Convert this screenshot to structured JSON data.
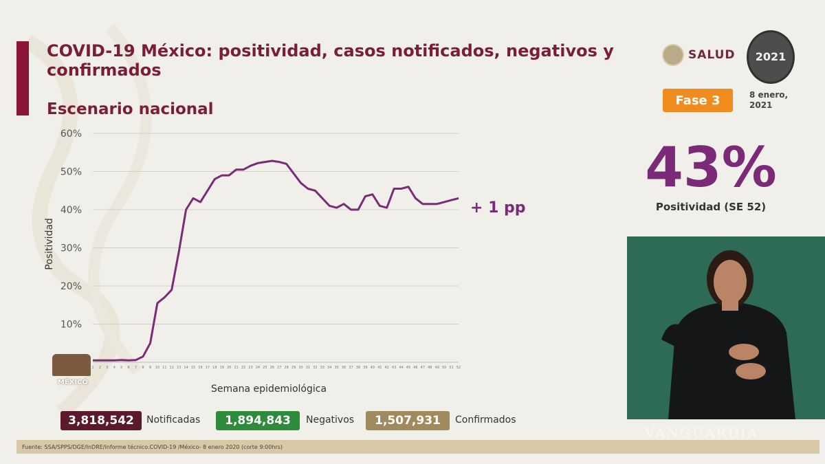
{
  "header": {
    "title": "COVID-19 México: positividad, casos notificados, negativos y confirmados",
    "subtitle": "Escenario nacional"
  },
  "brand": {
    "salud_text": "SALUD",
    "year_badge": "2021",
    "fase_label": "Fase 3",
    "date_label": "8 enero, 2021",
    "gob_text": "MÉXICO",
    "accent_color": "#8a1538",
    "fase_color": "#f08c1e",
    "highlight_color": "#7b2a78"
  },
  "kpi": {
    "value": "43%",
    "label": "Positividad (SE 52)"
  },
  "annotation": "+ 1 pp",
  "stats": [
    {
      "value": "3,818,542",
      "label": "Notificadas",
      "color": "#5a1a2b"
    },
    {
      "value": "1,894,843",
      "label": "Negativos",
      "color": "#2e8b3c"
    },
    {
      "value": "1,507,931",
      "label": "Confirmados",
      "color": "#a0895c"
    }
  ],
  "footer": "Fuente: SSA/SPPS/DGE/InDRE/Informe técnico.COVID-19 /México- 8 enero 2020 (corte 9:00hrs)",
  "watermark": "VANGUARDIA",
  "chart_data": {
    "type": "line",
    "xlabel": "Semana epidemiológica",
    "ylabel": "Positividad",
    "ylim": [
      0,
      60
    ],
    "yticks": [
      "10%",
      "20%",
      "30%",
      "40%",
      "50%",
      "60%"
    ],
    "grid": true,
    "x": [
      1,
      2,
      3,
      4,
      5,
      6,
      7,
      8,
      9,
      10,
      11,
      12,
      13,
      14,
      15,
      16,
      17,
      18,
      19,
      20,
      21,
      22,
      23,
      24,
      25,
      26,
      27,
      28,
      29,
      30,
      31,
      32,
      33,
      34,
      35,
      36,
      37,
      38,
      39,
      40,
      41,
      42,
      43,
      44,
      45,
      46,
      47,
      48,
      49,
      50,
      51,
      52
    ],
    "series": [
      {
        "values": [
          0.5,
          0.5,
          0.5,
          0.5,
          0.6,
          0.5,
          0.6,
          1.5,
          5,
          15.5,
          17,
          19,
          29,
          40,
          43,
          42,
          45,
          48,
          49,
          49,
          50.5,
          50.5,
          51.5,
          52.2,
          52.5,
          52.8,
          52.5,
          52,
          49.5,
          47,
          45.5,
          45,
          43,
          41,
          40.5,
          41.5,
          40,
          40,
          43.5,
          44,
          41,
          40.5,
          45.5,
          45.5,
          46,
          43,
          41.5,
          41.5,
          41.5,
          42,
          42.5,
          43
        ]
      }
    ]
  }
}
